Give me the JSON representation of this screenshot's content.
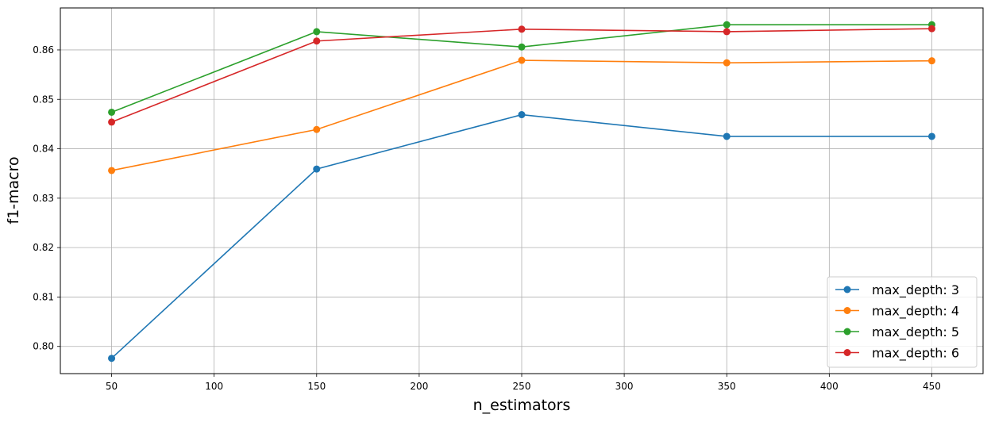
{
  "chart_data": {
    "type": "line",
    "title": "",
    "xlabel": "n_estimators",
    "ylabel": "f1-macro",
    "x": [
      50,
      150,
      250,
      350,
      450
    ],
    "xlim": [
      25,
      475
    ],
    "ylim": [
      0.7945,
      0.8685
    ],
    "xticks": [
      50,
      100,
      150,
      200,
      250,
      300,
      350,
      400,
      450
    ],
    "yticks": [
      0.8,
      0.81,
      0.82,
      0.83,
      0.84,
      0.85,
      0.86
    ],
    "ytick_labels": [
      "0.80",
      "0.81",
      "0.82",
      "0.83",
      "0.84",
      "0.85",
      "0.86"
    ],
    "grid": true,
    "legend_position": "bottom-right",
    "series": [
      {
        "name": "max_depth: 3",
        "color": "#1f77b4",
        "values": [
          0.7976,
          0.8359,
          0.8469,
          0.8425,
          0.8425
        ]
      },
      {
        "name": "max_depth: 4",
        "color": "#ff7f0e",
        "values": [
          0.8356,
          0.8439,
          0.8579,
          0.8574,
          0.8578
        ]
      },
      {
        "name": "max_depth: 5",
        "color": "#2ca02c",
        "values": [
          0.8474,
          0.8637,
          0.8606,
          0.8651,
          0.8651
        ]
      },
      {
        "name": "max_depth: 6",
        "color": "#d62728",
        "values": [
          0.8454,
          0.8618,
          0.8642,
          0.8637,
          0.8643
        ]
      }
    ]
  }
}
